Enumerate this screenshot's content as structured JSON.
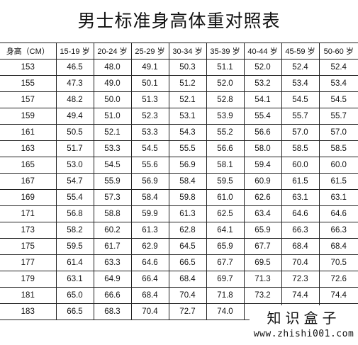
{
  "title": "男士标准身高体重对照表",
  "headers": [
    "身高（CM）",
    "15-19 岁",
    "20-24 岁",
    "25-29 岁",
    "30-34 岁",
    "35-39 岁",
    "40-44 岁",
    "45-59 岁",
    "50-60 岁"
  ],
  "rows": [
    [
      "153",
      "46.5",
      "48.0",
      "49.1",
      "50.3",
      "51.1",
      "52.0",
      "52.4",
      "52.4"
    ],
    [
      "155",
      "47.3",
      "49.0",
      "50.1",
      "51.2",
      "52.0",
      "53.2",
      "53.4",
      "53.4"
    ],
    [
      "157",
      "48.2",
      "50.0",
      "51.3",
      "52.1",
      "52.8",
      "54.1",
      "54.5",
      "54.5"
    ],
    [
      "159",
      "49.4",
      "51.0",
      "52.3",
      "53.1",
      "53.9",
      "55.4",
      "55.7",
      "55.7"
    ],
    [
      "161",
      "50.5",
      "52.1",
      "53.3",
      "54.3",
      "55.2",
      "56.6",
      "57.0",
      "57.0"
    ],
    [
      "163",
      "51.7",
      "53.3",
      "54.5",
      "55.5",
      "56.6",
      "58.0",
      "58.5",
      "58.5"
    ],
    [
      "165",
      "53.0",
      "54.5",
      "55.6",
      "56.9",
      "58.1",
      "59.4",
      "60.0",
      "60.0"
    ],
    [
      "167",
      "54.7",
      "55.9",
      "56.9",
      "58.4",
      "59.5",
      "60.9",
      "61.5",
      "61.5"
    ],
    [
      "169",
      "55.4",
      "57.3",
      "58.4",
      "59.8",
      "61.0",
      "62.6",
      "63.1",
      "63.1"
    ],
    [
      "171",
      "56.8",
      "58.8",
      "59.9",
      "61.3",
      "62.5",
      "63.4",
      "64.6",
      "64.6"
    ],
    [
      "173",
      "58.2",
      "60.2",
      "61.3",
      "62.8",
      "64.1",
      "65.9",
      "66.3",
      "66.3"
    ],
    [
      "175",
      "59.5",
      "61.7",
      "62.9",
      "64.5",
      "65.9",
      "67.7",
      "68.4",
      "68.4"
    ],
    [
      "177",
      "61.4",
      "63.3",
      "64.6",
      "66.5",
      "67.7",
      "69.5",
      "70.4",
      "70.5"
    ],
    [
      "179",
      "63.1",
      "64.9",
      "66.4",
      "68.4",
      "69.7",
      "71.3",
      "72.3",
      "72.6"
    ],
    [
      "181",
      "65.0",
      "66.6",
      "68.4",
      "70.4",
      "71.8",
      "73.2",
      "74.4",
      "74.4"
    ],
    [
      "183",
      "66.5",
      "68.3",
      "70.4",
      "72.7",
      "74.0",
      "",
      "",
      ""
    ]
  ],
  "watermark": {
    "name": "知识盒子",
    "url": "www.zhishi001.com"
  }
}
